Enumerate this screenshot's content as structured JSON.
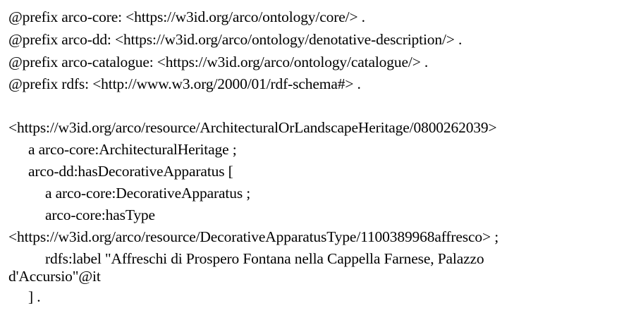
{
  "lines": [
    "@prefix arco-core: <https://w3id.org/arco/ontology/core/> .",
    "@prefix arco-dd: <https://w3id.org/arco/ontology/denotative-description/> .",
    "@prefix arco-catalogue: <https://w3id.org/arco/ontology/catalogue/> .",
    "@prefix rdfs: <http://www.w3.org/2000/01/rdf-schema#> .",
    "<https://w3id.org/arco/resource/ArchitecturalOrLandscapeHeritage/0800262039>",
    "a arco-core:ArchitecturalHeritage ;",
    "arco-dd:hasDecorativeApparatus [",
    "a arco-core:DecorativeApparatus ;",
    "arco-core:hasType",
    "<https://w3id.org/arco/resource/DecorativeApparatusType/1100389968affresco> ;",
    "rdfs:label \"Affreschi di Prospero Fontana nella Cappella Farnese, Palazzo",
    "d'Accursio\"@it",
    "] ."
  ]
}
